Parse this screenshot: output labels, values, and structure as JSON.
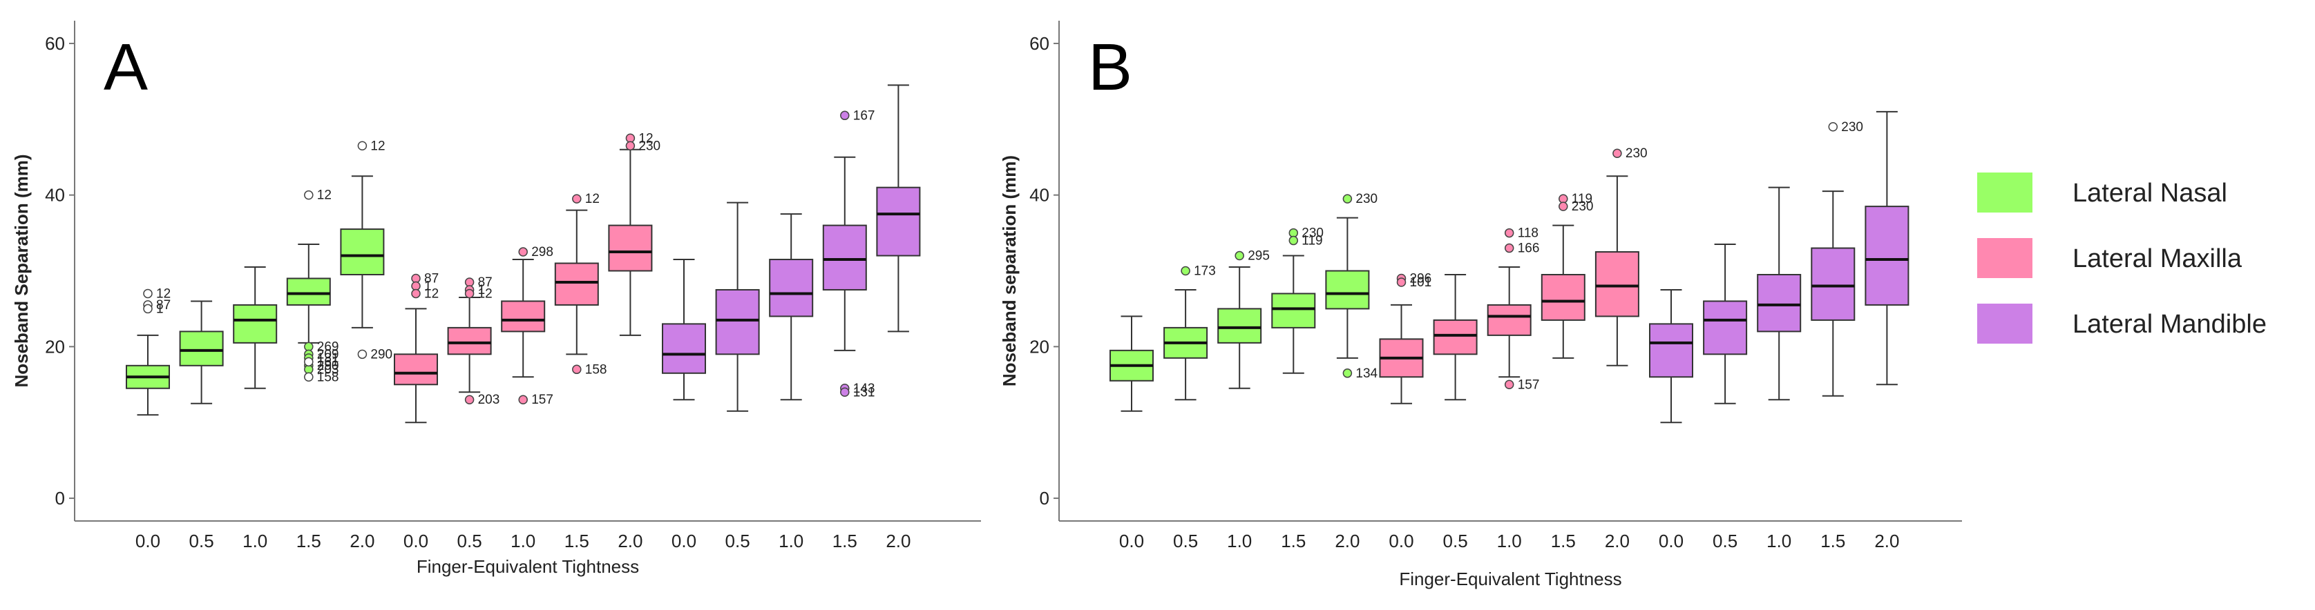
{
  "colors": {
    "nasal": "#99ff66",
    "maxilla": "#ff88b0",
    "mandible": "#cc80e6",
    "axis": "#777777"
  },
  "legend": {
    "items": [
      {
        "label": "Lateral Nasal",
        "color": "#99ff66"
      },
      {
        "label": "Lateral Maxilla",
        "color": "#ff88b0"
      },
      {
        "label": "Lateral Mandible",
        "color": "#cc80e6"
      }
    ]
  },
  "chart_data": [
    {
      "type": "boxplot",
      "panel": "A",
      "xlabel": "Finger-Equivalent Tightness",
      "ylabel": "Noseband Separation (mm)",
      "ylim": [
        -3,
        63
      ],
      "yticks": [
        0,
        20,
        40,
        60
      ],
      "categories": [
        "0.0",
        "0.5",
        "1.0",
        "1.5",
        "2.0",
        "0.0",
        "0.5",
        "1.0",
        "1.5",
        "2.0",
        "0.0",
        "0.5",
        "1.0",
        "1.5",
        "2.0"
      ],
      "boxes": [
        {
          "group": "nasal",
          "min": 11,
          "q1": 14.5,
          "median": 16,
          "q3": 17.5,
          "max": 21.5,
          "outliers": [
            {
              "v": 27,
              "label": "12",
              "open": true
            },
            {
              "v": 25.5,
              "label": "87",
              "open": true
            },
            {
              "v": 25,
              "label": "1",
              "open": true
            }
          ]
        },
        {
          "group": "nasal",
          "min": 12.5,
          "q1": 17.5,
          "median": 19.5,
          "q3": 22,
          "max": 26
        },
        {
          "group": "nasal",
          "min": 14.5,
          "q1": 20.5,
          "median": 23.5,
          "q3": 25.5,
          "max": 30.5
        },
        {
          "group": "nasal",
          "min": 20.5,
          "q1": 25.5,
          "median": 27,
          "q3": 29,
          "max": 33.5,
          "outliers": [
            {
              "v": 40,
              "label": "12",
              "open": true
            },
            {
              "v": 20,
              "label": "269",
              "open": false
            },
            {
              "v": 19,
              "label": "209",
              "open": false
            },
            {
              "v": 18.5,
              "label": "131",
              "open": false
            },
            {
              "v": 17.5,
              "label": "290",
              "open": false
            },
            {
              "v": 17,
              "label": "203",
              "open": false
            },
            {
              "v": 16,
              "label": "158",
              "open": true
            },
            {
              "v": 18,
              "label": "161",
              "open": true
            }
          ]
        },
        {
          "group": "nasal",
          "min": 22.5,
          "q1": 29.5,
          "median": 32,
          "q3": 35.5,
          "max": 42.5,
          "outliers": [
            {
              "v": 46.5,
              "label": "12",
              "open": true
            },
            {
              "v": 19,
              "label": "290",
              "open": true
            }
          ]
        },
        {
          "group": "maxilla",
          "min": 10,
          "q1": 15,
          "median": 16.5,
          "q3": 19,
          "max": 25,
          "outliers": [
            {
              "v": 29,
              "label": "87",
              "open": false
            },
            {
              "v": 28,
              "label": "1",
              "open": false
            },
            {
              "v": 27,
              "label": "12",
              "open": false
            }
          ]
        },
        {
          "group": "maxilla",
          "min": 14,
          "q1": 19,
          "median": 20.5,
          "q3": 22.5,
          "max": 26.5,
          "outliers": [
            {
              "v": 28.5,
              "label": "87",
              "open": false
            },
            {
              "v": 27.5,
              "label": "1",
              "open": false
            },
            {
              "v": 27,
              "label": "12",
              "open": false
            },
            {
              "v": 13,
              "label": "203",
              "open": false
            }
          ]
        },
        {
          "group": "maxilla",
          "min": 16,
          "q1": 22,
          "median": 23.5,
          "q3": 26,
          "max": 31.5,
          "outliers": [
            {
              "v": 32.5,
              "label": "298",
              "open": false
            },
            {
              "v": 13,
              "label": "157",
              "open": false
            }
          ]
        },
        {
          "group": "maxilla",
          "min": 19,
          "q1": 25.5,
          "median": 28.5,
          "q3": 31,
          "max": 38,
          "outliers": [
            {
              "v": 39.5,
              "label": "12",
              "open": false
            },
            {
              "v": 17,
              "label": "158",
              "open": false
            }
          ]
        },
        {
          "group": "maxilla",
          "min": 21.5,
          "q1": 30,
          "median": 32.5,
          "q3": 36,
          "max": 46,
          "outliers": [
            {
              "v": 47.5,
              "label": "12",
              "open": false
            },
            {
              "v": 46.5,
              "label": "230",
              "open": false
            }
          ]
        },
        {
          "group": "mandible",
          "min": 13,
          "q1": 16.5,
          "median": 19,
          "q3": 23,
          "max": 31.5
        },
        {
          "group": "mandible",
          "min": 11.5,
          "q1": 19,
          "median": 23.5,
          "q3": 27.5,
          "max": 39
        },
        {
          "group": "mandible",
          "min": 13,
          "q1": 24,
          "median": 27,
          "q3": 31.5,
          "max": 37.5
        },
        {
          "group": "mandible",
          "min": 19.5,
          "q1": 27.5,
          "median": 31.5,
          "q3": 36,
          "max": 45,
          "outliers": [
            {
              "v": 50.5,
              "label": "167",
              "open": false
            },
            {
              "v": 14.5,
              "label": "143",
              "open": false
            },
            {
              "v": 14,
              "label": "131",
              "open": false
            }
          ]
        },
        {
          "group": "mandible",
          "min": 22,
          "q1": 32,
          "median": 37.5,
          "q3": 41,
          "max": 54.5
        }
      ]
    },
    {
      "type": "boxplot",
      "panel": "B",
      "xlabel": "Finger-Equivalent Tightness",
      "ylabel": "Noseband separation (mm)",
      "ylim": [
        -3,
        63
      ],
      "yticks": [
        0,
        20,
        40,
        60
      ],
      "categories": [
        "0.0",
        "0.5",
        "1.0",
        "1.5",
        "2.0",
        "0.0",
        "0.5",
        "1.0",
        "1.5",
        "2.0",
        "0.0",
        "0.5",
        "1.0",
        "1.5",
        "2.0"
      ],
      "boxes": [
        {
          "group": "nasal",
          "min": 11.5,
          "q1": 15.5,
          "median": 17.5,
          "q3": 19.5,
          "max": 24
        },
        {
          "group": "nasal",
          "min": 13,
          "q1": 18.5,
          "median": 20.5,
          "q3": 22.5,
          "max": 27.5,
          "outliers": [
            {
              "v": 30,
              "label": "173",
              "open": false
            }
          ]
        },
        {
          "group": "nasal",
          "min": 14.5,
          "q1": 20.5,
          "median": 22.5,
          "q3": 25,
          "max": 30.5,
          "outliers": [
            {
              "v": 32,
              "label": "295",
              "open": false
            }
          ]
        },
        {
          "group": "nasal",
          "min": 16.5,
          "q1": 22.5,
          "median": 25,
          "q3": 27,
          "max": 32,
          "outliers": [
            {
              "v": 35,
              "label": "230",
              "open": false
            },
            {
              "v": 34,
              "label": "119",
              "open": false
            }
          ]
        },
        {
          "group": "nasal",
          "min": 18.5,
          "q1": 25,
          "median": 27,
          "q3": 30,
          "max": 37,
          "outliers": [
            {
              "v": 39.5,
              "label": "230",
              "open": false
            },
            {
              "v": 16.5,
              "label": "134",
              "open": false
            }
          ]
        },
        {
          "group": "maxilla",
          "min": 12.5,
          "q1": 16,
          "median": 18.5,
          "q3": 21,
          "max": 25.5,
          "outliers": [
            {
              "v": 29,
              "label": "296",
              "open": false
            },
            {
              "v": 28.5,
              "label": "101",
              "open": false
            }
          ]
        },
        {
          "group": "maxilla",
          "min": 13,
          "q1": 19,
          "median": 21.5,
          "q3": 23.5,
          "max": 29.5
        },
        {
          "group": "maxilla",
          "min": 16,
          "q1": 21.5,
          "median": 24,
          "q3": 25.5,
          "max": 30.5,
          "outliers": [
            {
              "v": 35,
              "label": "118",
              "open": false
            },
            {
              "v": 33,
              "label": "166",
              "open": false
            },
            {
              "v": 15,
              "label": "157",
              "open": false
            }
          ]
        },
        {
          "group": "maxilla",
          "min": 18.5,
          "q1": 23.5,
          "median": 26,
          "q3": 29.5,
          "max": 36,
          "outliers": [
            {
              "v": 39.5,
              "label": "119",
              "open": false
            },
            {
              "v": 38.5,
              "label": "230",
              "open": false
            }
          ]
        },
        {
          "group": "maxilla",
          "min": 17.5,
          "q1": 24,
          "median": 28,
          "q3": 32.5,
          "max": 42.5,
          "outliers": [
            {
              "v": 45.5,
              "label": "230",
              "open": false
            }
          ]
        },
        {
          "group": "mandible",
          "min": 10,
          "q1": 16,
          "median": 20.5,
          "q3": 23,
          "max": 27.5
        },
        {
          "group": "mandible",
          "min": 12.5,
          "q1": 19,
          "median": 23.5,
          "q3": 26,
          "max": 33.5
        },
        {
          "group": "mandible",
          "min": 13,
          "q1": 22,
          "median": 25.5,
          "q3": 29.5,
          "max": 41
        },
        {
          "group": "mandible",
          "min": 13.5,
          "q1": 23.5,
          "median": 28,
          "q3": 33,
          "max": 40.5,
          "outliers": [
            {
              "v": 49,
              "label": "230",
              "open": true
            }
          ]
        },
        {
          "group": "mandible",
          "min": 15,
          "q1": 25.5,
          "median": 31.5,
          "q3": 38.5,
          "max": 51
        }
      ]
    }
  ]
}
